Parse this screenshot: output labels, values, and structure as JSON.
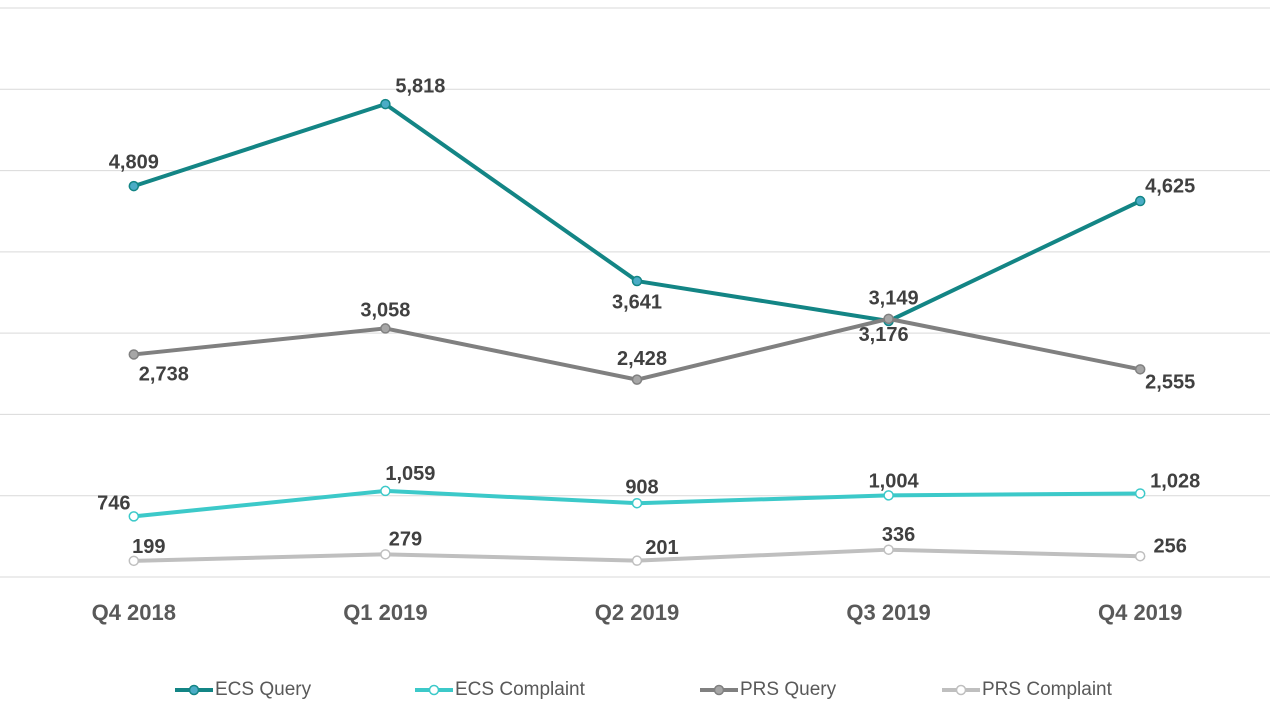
{
  "chart_data": {
    "type": "line",
    "categories": [
      "Q4 2018",
      "Q1 2019",
      "Q2 2019",
      "Q3 2019",
      "Q4 2019"
    ],
    "series": [
      {
        "name": "ECS Query",
        "color": "#138585",
        "marker_color": "#4bacc6",
        "values": [
          4809,
          5818,
          3641,
          3149,
          4625
        ],
        "value_labels": [
          "4,809",
          "5,818",
          "3,641",
          "3,149",
          "4,625"
        ]
      },
      {
        "name": "ECS Complaint",
        "color": "#3cc9c9",
        "marker_color": "#ffffff",
        "values": [
          746,
          1059,
          908,
          1004,
          1028
        ],
        "value_labels": [
          "746",
          "1,059",
          "908",
          "1,004",
          "1,028"
        ]
      },
      {
        "name": "PRS Query",
        "color": "#808080",
        "marker_color": "#a6a6a6",
        "values": [
          2738,
          3058,
          2428,
          3176,
          2555
        ],
        "value_labels": [
          "2,738",
          "3,058",
          "2,428",
          "3,176",
          "2,555"
        ]
      },
      {
        "name": "PRS Complaint",
        "color": "#bfbfbf",
        "marker_color": "#ffffff",
        "values": [
          199,
          279,
          201,
          336,
          256
        ],
        "value_labels": [
          "199",
          "279",
          "201",
          "336",
          "256"
        ]
      }
    ],
    "ylim": [
      0,
      7000
    ],
    "yticks": [
      0,
      1000,
      2000,
      3000,
      4000,
      5000,
      6000,
      7000
    ],
    "grid": true,
    "legend": "bottom"
  }
}
